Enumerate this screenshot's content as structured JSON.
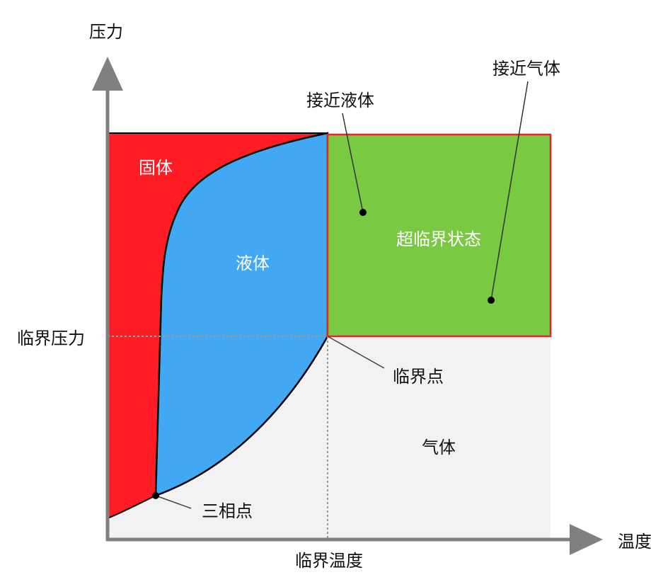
{
  "axes": {
    "y_label": "压力",
    "x_label": "温度",
    "critical_pressure": "临界压力",
    "critical_temperature": "临界温度"
  },
  "regions": {
    "solid": "固体",
    "liquid": "液体",
    "supercritical": "超临界状态",
    "gas": "气体"
  },
  "points": {
    "critical_point": "临界点",
    "triple_point": "三相点"
  },
  "annotations": {
    "near_liquid": "接近液体",
    "near_gas": "接近气体"
  },
  "colors": {
    "solid": "#ff1c24",
    "liquid": "#42a8f4",
    "supercritical": "#7ac943",
    "gas": "#f2f2f2",
    "axis": "#808080",
    "supercritical_border": "#e8262a"
  }
}
